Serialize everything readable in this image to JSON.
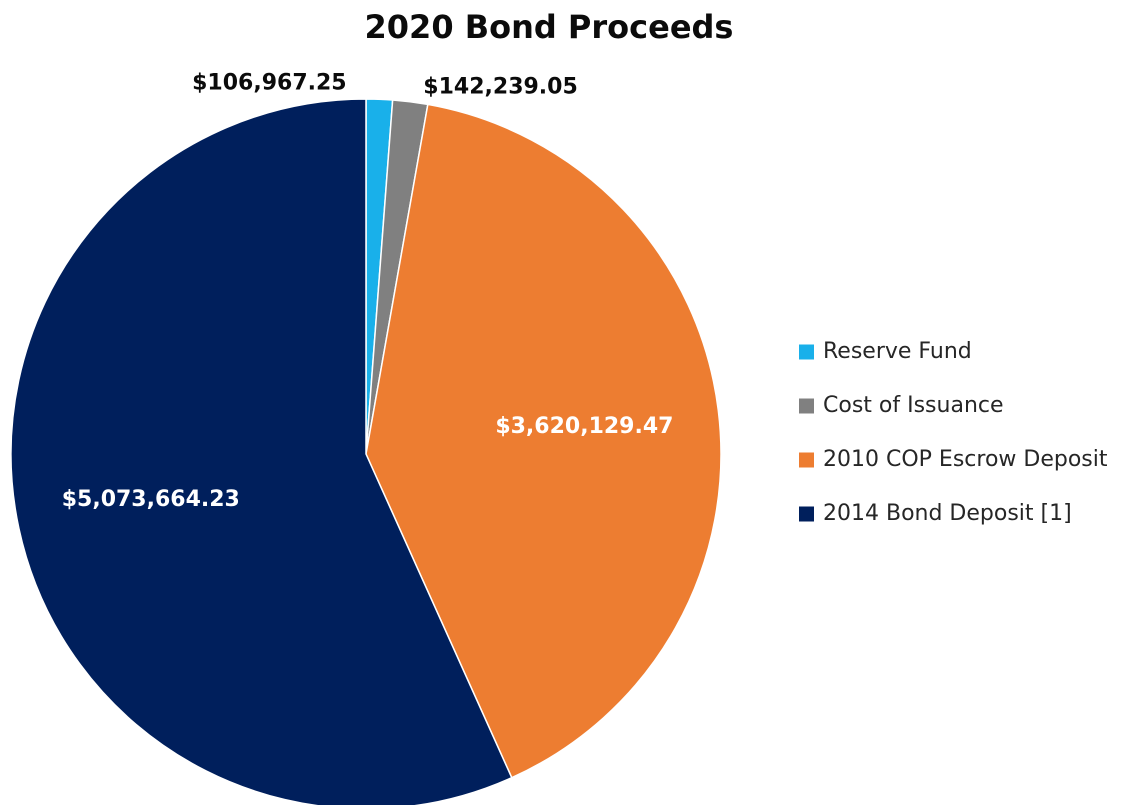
{
  "chart_data": {
    "type": "pie",
    "title": "2020 Bond Proceeds",
    "start_angle_deg": 0,
    "direction": "clockwise",
    "legend_position": "right",
    "slices": [
      {
        "label": "Reserve Fund",
        "value": 106967.25,
        "value_label": "$106,967.25",
        "color": "#19b0ea"
      },
      {
        "label": "Cost of Issuance",
        "value": 142239.05,
        "value_label": "$142,239.05",
        "color": "#808080"
      },
      {
        "label": "2010 COP Escrow Deposit",
        "value": 3620129.47,
        "value_label": "$3,620,129.47",
        "color": "#ed7d31"
      },
      {
        "label": "2014 Bond Deposit [1]",
        "value": 5073664.23,
        "value_label": "$5,073,664.23",
        "color": "#001f5c"
      }
    ]
  }
}
